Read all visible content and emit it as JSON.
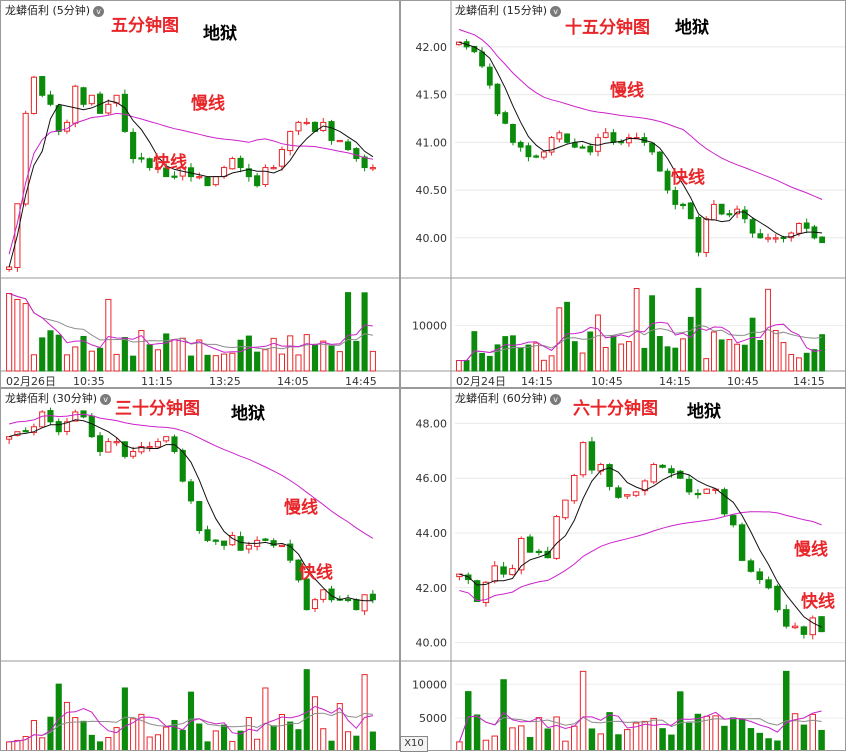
{
  "colors": {
    "up": "#e8262a",
    "down": "#0b8a0b",
    "fast_ma": "#111111",
    "slow_ma": "#cc22cc",
    "vol_ma2": "#8c8c8c"
  },
  "panels": [
    {
      "id": "p5",
      "title": "龙蟒佰利 (5分钟)",
      "anno_title": "五分钟图",
      "anno_hell": "地狱",
      "slow_label": "慢线",
      "fast_label": "快线",
      "price_ticks": [],
      "vol_ticks": [],
      "time_labels": [
        "02月26日",
        "10:35",
        "11:15",
        "13:25",
        "14:05",
        "14:45"
      ]
    },
    {
      "id": "p15",
      "title": "龙蟒佰利 (15分钟)",
      "anno_title": "十五分钟图",
      "anno_hell": "地狱",
      "slow_label": "慢线",
      "fast_label": "快线",
      "price_ticks": [
        "42.00",
        "41.50",
        "41.00",
        "40.50",
        "40.00"
      ],
      "vol_ticks": [
        "10000"
      ],
      "time_labels": [
        "02月24日",
        "14:15",
        "10:45",
        "14:15",
        "10:45",
        "14:15"
      ]
    },
    {
      "id": "p30",
      "title": "龙蟒佰利 (30分钟)",
      "anno_title": "三十分钟图",
      "anno_hell": "地狱",
      "slow_label": "慢线",
      "fast_label": "快线",
      "price_ticks": [],
      "vol_ticks": [],
      "time_labels": []
    },
    {
      "id": "p60",
      "title": "龙蟒佰利 (60分钟)",
      "anno_title": "六十分钟图",
      "anno_hell": "地狱",
      "slow_label": "慢线",
      "fast_label": "快线",
      "price_ticks": [
        "48.00",
        "46.00",
        "44.00",
        "42.00",
        "40.00"
      ],
      "vol_ticks": [
        "10000",
        "5000"
      ],
      "time_labels": []
    }
  ],
  "x10_label": "X10",
  "chart_data": [
    {
      "type": "candlestick",
      "title": "龙蟒佰利 (5分钟)",
      "price_range": [
        39.4,
        42.2
      ],
      "price_path": [
        39.5,
        40.2,
        41.2,
        41.6,
        41.4,
        41.3,
        41.0,
        41.1,
        41.5,
        41.3,
        41.4,
        41.2,
        41.3,
        41.4,
        41.0,
        40.7,
        40.7,
        40.6,
        40.6,
        40.5,
        40.5,
        40.6,
        40.5,
        40.5,
        40.4,
        40.5,
        40.6,
        40.7,
        40.6,
        40.5,
        40.4,
        40.6,
        40.6,
        40.8,
        41.0,
        41.1,
        41.1,
        41.0,
        41.1,
        40.9,
        40.9,
        40.8,
        40.7,
        40.6,
        40.6
      ]
    },
    {
      "type": "candlestick",
      "title": "龙蟒佰利 (15分钟)",
      "price_range": [
        39.6,
        42.25
      ],
      "price_path": [
        42.05,
        42.0,
        41.95,
        41.8,
        41.6,
        41.3,
        41.2,
        41.0,
        40.95,
        40.85,
        40.85,
        40.9,
        41.05,
        41.1,
        41.0,
        40.95,
        40.95,
        40.9,
        41.05,
        41.1,
        41.0,
        41.0,
        41.05,
        41.05,
        41.0,
        40.9,
        40.7,
        40.5,
        40.35,
        40.35,
        40.2,
        39.85,
        40.2,
        40.35,
        40.25,
        40.25,
        40.3,
        40.2,
        40.05,
        40.0,
        40.0,
        40.0,
        40.0,
        40.05,
        40.15,
        40.1,
        40.0,
        39.95
      ]
    },
    {
      "type": "candlestick",
      "title": "龙蟒佰利 (30分钟)",
      "price_range": [
        39.7,
        42.25
      ],
      "price_path": [
        41.95,
        42.0,
        42.0,
        42.05,
        42.2,
        42.1,
        42.0,
        42.1,
        42.2,
        42.15,
        41.95,
        41.8,
        41.9,
        41.9,
        41.75,
        41.8,
        41.85,
        41.85,
        41.9,
        41.95,
        41.8,
        41.5,
        41.3,
        41.0,
        40.9,
        40.9,
        40.85,
        40.95,
        40.8,
        40.85,
        40.9,
        40.9,
        40.85,
        40.85,
        40.7,
        40.5,
        40.2,
        40.3,
        40.4,
        40.3,
        40.3,
        40.3,
        40.2,
        40.35,
        40.3
      ]
    },
    {
      "type": "candlestick",
      "title": "龙蟒佰利 (60分钟)",
      "price_range": [
        39.4,
        48.6
      ],
      "price_path": [
        42.5,
        42.3,
        41.5,
        42.2,
        42.8,
        42.5,
        42.7,
        43.8,
        43.3,
        43.3,
        43.1,
        44.6,
        45.2,
        46.1,
        47.3,
        46.3,
        46.5,
        45.7,
        45.3,
        45.4,
        45.5,
        45.9,
        46.5,
        46.4,
        46.2,
        46.0,
        45.5,
        45.4,
        45.6,
        45.6,
        44.7,
        44.3,
        43.0,
        42.6,
        42.3,
        42.0,
        41.2,
        40.6,
        40.6,
        40.3,
        40.9,
        40.4
      ]
    }
  ]
}
